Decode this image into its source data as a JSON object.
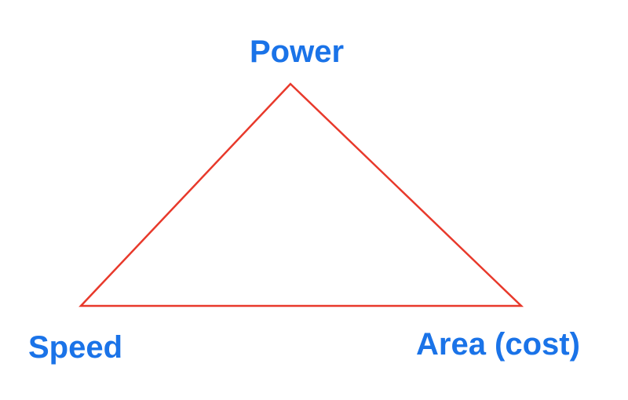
{
  "diagram": {
    "type": "triangle",
    "vertices": {
      "top": "Power",
      "bottom_left": "Speed",
      "bottom_right": "Area (cost)"
    }
  },
  "colors": {
    "label_text": "#1a73e8",
    "triangle_stroke": "#e8392b",
    "background": "#ffffff"
  }
}
